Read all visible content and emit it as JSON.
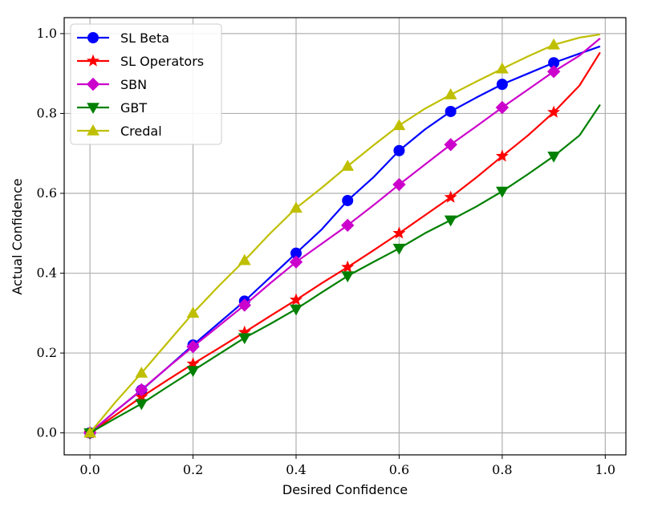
{
  "chart_data": {
    "type": "line",
    "xlabel": "Desired Confidence",
    "ylabel": "Actual Confidence",
    "xlim": [
      -0.05,
      1.04
    ],
    "ylim": [
      -0.055,
      1.04
    ],
    "xticks": [
      0.0,
      0.2,
      0.4,
      0.6,
      0.8,
      1.0
    ],
    "yticks": [
      0.0,
      0.2,
      0.4,
      0.6,
      0.8,
      1.0
    ],
    "xtick_labels": [
      "0.0",
      "0.2",
      "0.4",
      "0.6",
      "0.8",
      "1.0"
    ],
    "ytick_labels": [
      "0.0",
      "0.2",
      "0.4",
      "0.6",
      "0.8",
      "1.0"
    ],
    "grid": true,
    "legend_position": "top-left",
    "marker_x": [
      0.0,
      0.1,
      0.2,
      0.3,
      0.4,
      0.5,
      0.6,
      0.7,
      0.8,
      0.9
    ],
    "series": [
      {
        "name": "SL Beta",
        "color": "#0000ff",
        "marker": "circle",
        "x": [
          0.0,
          0.05,
          0.1,
          0.15,
          0.2,
          0.25,
          0.3,
          0.35,
          0.4,
          0.45,
          0.5,
          0.55,
          0.6,
          0.65,
          0.7,
          0.75,
          0.8,
          0.85,
          0.9,
          0.95,
          0.99
        ],
        "values": [
          0.0,
          0.055,
          0.107,
          0.163,
          0.22,
          0.275,
          0.33,
          0.39,
          0.45,
          0.51,
          0.582,
          0.64,
          0.707,
          0.76,
          0.805,
          0.84,
          0.873,
          0.9,
          0.927,
          0.95,
          0.968
        ]
      },
      {
        "name": "SL Operators",
        "color": "#ff0000",
        "marker": "star",
        "x": [
          0.0,
          0.05,
          0.1,
          0.15,
          0.2,
          0.25,
          0.3,
          0.35,
          0.4,
          0.45,
          0.5,
          0.55,
          0.6,
          0.65,
          0.7,
          0.75,
          0.8,
          0.85,
          0.9,
          0.95,
          0.99
        ],
        "values": [
          0.0,
          0.045,
          0.09,
          0.132,
          0.173,
          0.212,
          0.252,
          0.293,
          0.333,
          0.375,
          0.415,
          0.457,
          0.5,
          0.545,
          0.59,
          0.64,
          0.693,
          0.745,
          0.803,
          0.87,
          0.953
        ]
      },
      {
        "name": "SBN",
        "color": "#cc00cc",
        "marker": "diamond",
        "x": [
          0.0,
          0.05,
          0.1,
          0.15,
          0.2,
          0.25,
          0.3,
          0.35,
          0.4,
          0.45,
          0.5,
          0.55,
          0.6,
          0.65,
          0.7,
          0.75,
          0.8,
          0.85,
          0.9,
          0.95,
          0.99
        ],
        "values": [
          0.0,
          0.055,
          0.108,
          0.163,
          0.216,
          0.268,
          0.32,
          0.375,
          0.428,
          0.474,
          0.52,
          0.57,
          0.622,
          0.672,
          0.722,
          0.768,
          0.815,
          0.86,
          0.905,
          0.945,
          0.988
        ]
      },
      {
        "name": "GBT",
        "color": "#008000",
        "marker": "triangle-down",
        "x": [
          0.0,
          0.05,
          0.1,
          0.15,
          0.2,
          0.25,
          0.3,
          0.35,
          0.4,
          0.45,
          0.5,
          0.55,
          0.6,
          0.65,
          0.7,
          0.75,
          0.8,
          0.85,
          0.9,
          0.95,
          0.99
        ],
        "values": [
          0.0,
          0.037,
          0.073,
          0.115,
          0.156,
          0.197,
          0.238,
          0.273,
          0.31,
          0.352,
          0.393,
          0.428,
          0.462,
          0.5,
          0.533,
          0.567,
          0.605,
          0.648,
          0.693,
          0.745,
          0.822
        ]
      },
      {
        "name": "Credal",
        "color": "#bfbf00",
        "marker": "triangle-up",
        "x": [
          0.0,
          0.05,
          0.1,
          0.15,
          0.2,
          0.25,
          0.3,
          0.35,
          0.4,
          0.45,
          0.5,
          0.55,
          0.6,
          0.65,
          0.7,
          0.75,
          0.8,
          0.85,
          0.9,
          0.95,
          0.99
        ],
        "values": [
          0.0,
          0.078,
          0.15,
          0.225,
          0.3,
          0.368,
          0.432,
          0.5,
          0.563,
          0.614,
          0.668,
          0.72,
          0.77,
          0.812,
          0.847,
          0.88,
          0.912,
          0.943,
          0.972,
          0.99,
          0.998
        ]
      }
    ]
  }
}
